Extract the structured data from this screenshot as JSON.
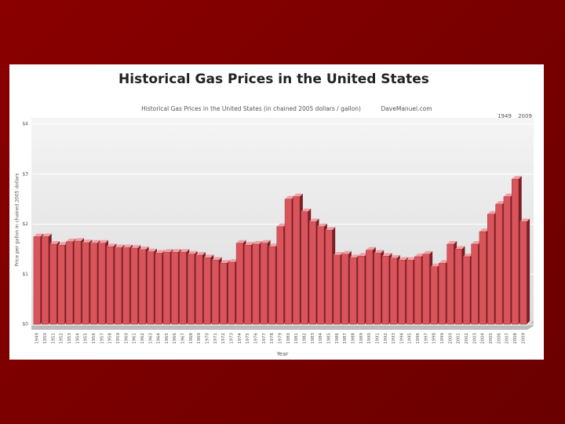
{
  "chart_data": {
    "type": "bar",
    "title": "Historical Gas Prices in the United States",
    "subtitle": "Historical Gas Prices in the United States (in chained 2005 dollars / gallon)",
    "source": "DaveManuel.com",
    "range_start": "1949",
    "range_end": "2009",
    "y_label": "Price per gallon in chained 2005 dollars",
    "x_label": "Year",
    "color": "#d9555c",
    "categories": [
      "1949",
      "1950",
      "1951",
      "1952",
      "1953",
      "1954",
      "1955",
      "1956",
      "1957",
      "1958",
      "1959",
      "1960",
      "1961",
      "1962",
      "1963",
      "1964",
      "1965",
      "1966",
      "1967",
      "1968",
      "1969",
      "1970",
      "1971",
      "1972",
      "1973",
      "1974",
      "1975",
      "1976",
      "1977",
      "1978",
      "1979",
      "1980",
      "1981",
      "1982",
      "1983",
      "1984",
      "1985",
      "1986",
      "1987",
      "1988",
      "1989",
      "1990",
      "1991",
      "1992",
      "1993",
      "1994",
      "1995",
      "1996",
      "1997",
      "1998",
      "1999",
      "2000",
      "2001",
      "2002",
      "2003",
      "2004",
      "2005",
      "2006",
      "2007",
      "2008",
      "2009"
    ],
    "values": [
      1.75,
      1.75,
      1.6,
      1.58,
      1.65,
      1.66,
      1.63,
      1.62,
      1.62,
      1.55,
      1.53,
      1.53,
      1.52,
      1.49,
      1.45,
      1.42,
      1.44,
      1.44,
      1.44,
      1.4,
      1.38,
      1.33,
      1.28,
      1.22,
      1.24,
      1.62,
      1.58,
      1.6,
      1.62,
      1.55,
      1.95,
      2.5,
      2.55,
      2.25,
      2.05,
      1.95,
      1.88,
      1.38,
      1.4,
      1.33,
      1.36,
      1.48,
      1.42,
      1.36,
      1.32,
      1.28,
      1.28,
      1.35,
      1.4,
      1.15,
      1.22,
      1.6,
      1.5,
      1.35,
      1.6,
      1.85,
      2.2,
      2.4,
      2.55,
      2.9,
      2.05
    ],
    "ylim": [
      0,
      4
    ],
    "yticks": [
      {
        "value": 0,
        "label": "$0"
      },
      {
        "value": 1,
        "label": "$1"
      },
      {
        "value": 2,
        "label": "$2"
      },
      {
        "value": 3,
        "label": "$3"
      },
      {
        "value": 4,
        "label": "$4"
      }
    ],
    "grid": true
  }
}
